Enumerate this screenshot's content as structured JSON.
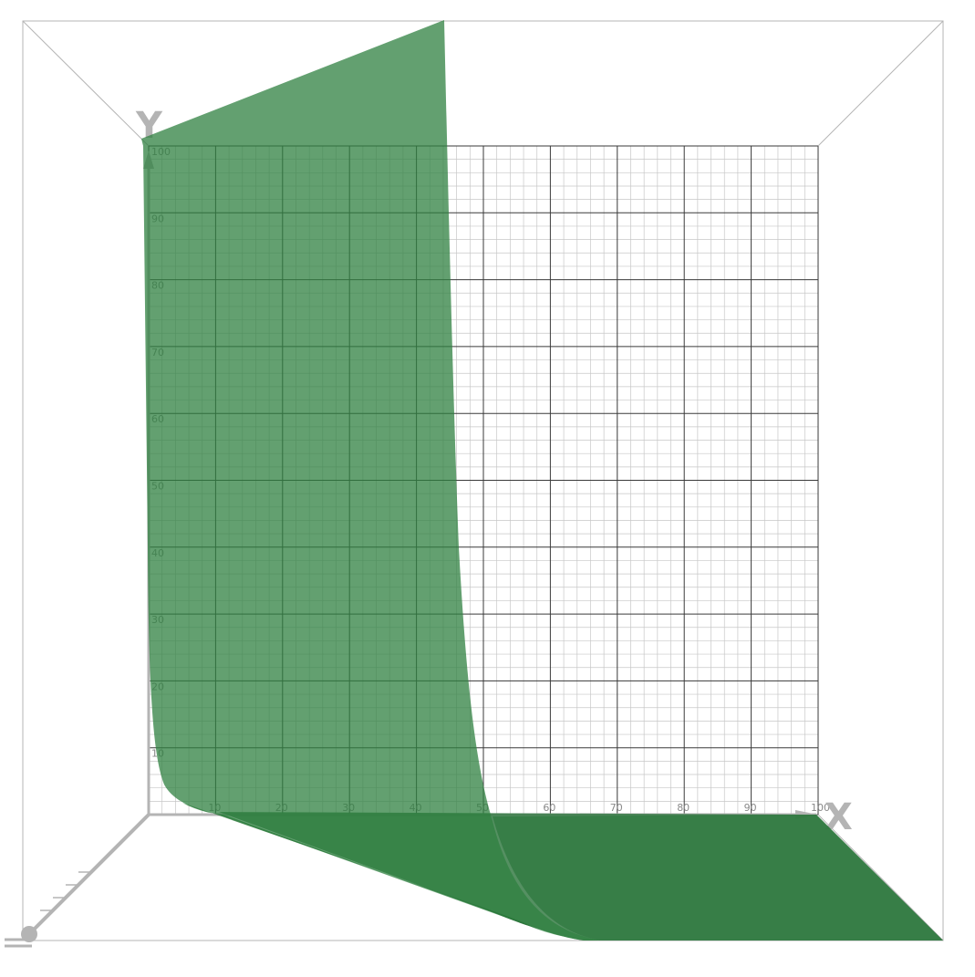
{
  "chart_data": {
    "type": "surface3d",
    "axes": {
      "x": {
        "label": "X",
        "range": [
          0,
          100
        ],
        "ticks": [
          10,
          20,
          30,
          40,
          50,
          60,
          70,
          80,
          90,
          100
        ]
      },
      "y": {
        "label": "Y",
        "range": [
          0,
          100
        ],
        "ticks": [
          10,
          20,
          30,
          40,
          50,
          60,
          70,
          80,
          90,
          100
        ]
      }
    },
    "grid": true,
    "surface": {
      "color": "#2f8040",
      "back_edge_curve": [
        [
          1,
          100
        ],
        [
          2,
          60
        ],
        [
          3,
          35
        ],
        [
          5,
          16
        ],
        [
          8,
          7
        ],
        [
          12,
          3
        ],
        [
          20,
          0.5
        ],
        [
          30,
          0
        ],
        [
          100,
          0
        ]
      ],
      "front_edge_curve": [
        [
          45,
          100
        ],
        [
          47,
          70
        ],
        [
          48,
          55
        ],
        [
          49,
          40
        ],
        [
          50,
          27
        ],
        [
          51,
          18
        ],
        [
          53,
          10
        ],
        [
          56,
          5
        ],
        [
          60,
          2
        ],
        [
          65,
          0.5
        ],
        [
          70,
          0
        ],
        [
          100,
          0
        ]
      ]
    }
  }
}
